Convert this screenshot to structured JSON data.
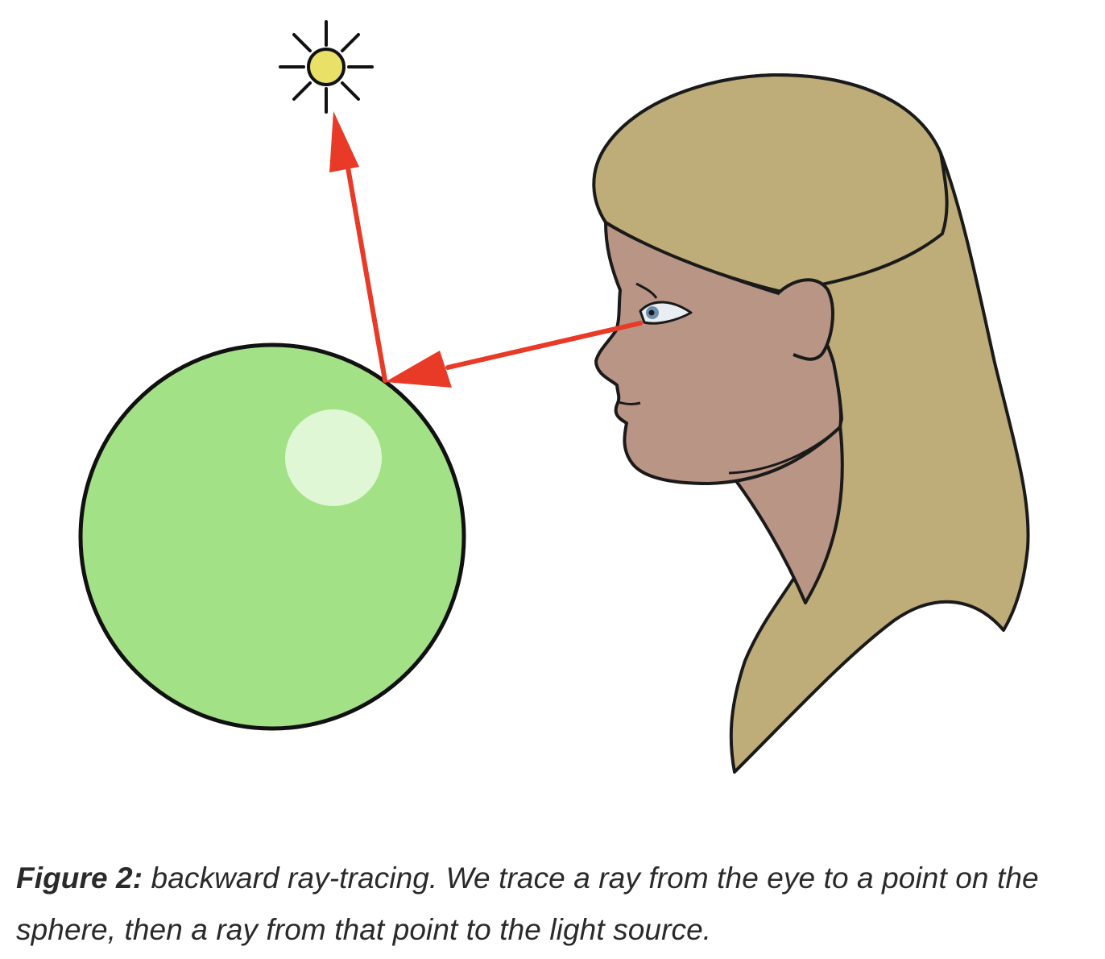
{
  "caption": {
    "label": "Figure 2:",
    "text": " backward ray-tracing. We trace a ray from the eye to a point on the sphere, then a ray from that point to the light source."
  },
  "colors": {
    "sphere_fill": "#a3e186",
    "sphere_highlight": "#dff7d4",
    "sun_fill": "#e8e067",
    "hair": "#bead78",
    "skin": "#b99585",
    "ray": "#e83a26",
    "outline": "#111111"
  },
  "icons": {
    "light": "sun-icon",
    "viewer": "person-head-icon",
    "object": "sphere-icon"
  }
}
